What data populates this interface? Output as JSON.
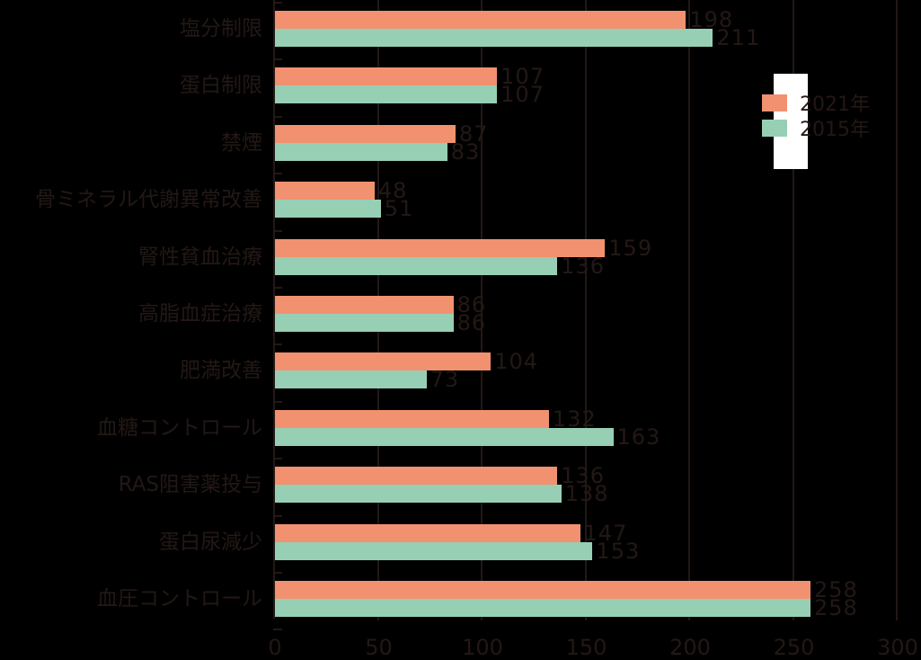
{
  "chart_data": {
    "type": "bar",
    "orientation": "horizontal",
    "title": "",
    "xlabel": "",
    "ylabel": "",
    "xlim": [
      0,
      300
    ],
    "xticks": [
      0,
      50,
      100,
      150,
      200,
      250,
      300
    ],
    "grid": true,
    "legend_position": "upper right",
    "categories": [
      "塩分制限",
      "蛋白制限",
      "禁煙",
      "骨ミネラル代謝異常改善",
      "腎性貧血治療",
      "高脂血症治療",
      "肥満改善",
      "血糖コントロール",
      "RAS阻害薬投与",
      "蛋白尿減少",
      "血圧コントロール"
    ],
    "series": [
      {
        "name": "2021年",
        "color": "#f19170",
        "values": [
          198,
          107,
          87,
          48,
          159,
          86,
          104,
          132,
          136,
          147,
          258
        ]
      },
      {
        "name": "2015年",
        "color": "#97cfb4",
        "values": [
          211,
          107,
          83,
          51,
          136,
          86,
          73,
          163,
          138,
          153,
          258
        ]
      }
    ]
  },
  "axis": {
    "tick_labels": [
      "0",
      "50",
      "100",
      "150",
      "200",
      "250",
      "300"
    ]
  },
  "legend": {
    "items": [
      {
        "label": "2021年",
        "color": "#f19170"
      },
      {
        "label": "2015年",
        "color": "#97cfb4"
      }
    ]
  },
  "labels": {
    "categories": [
      "塩分制限",
      "蛋白制限",
      "禁煙",
      "骨ミネラル代謝異常改善",
      "腎性貧血治療",
      "高脂血症治療",
      "肥満改善",
      "血糖コントロール",
      "RAS阻害薬投与",
      "蛋白尿減少",
      "血圧コントロール"
    ],
    "values_2021": [
      "198",
      "107",
      "87",
      "48",
      "159",
      "86",
      "104",
      "132",
      "136",
      "147",
      "258"
    ],
    "values_2015": [
      "211",
      "107",
      "83",
      "51",
      "136",
      "86",
      "73",
      "163",
      "138",
      "153",
      "258"
    ]
  }
}
